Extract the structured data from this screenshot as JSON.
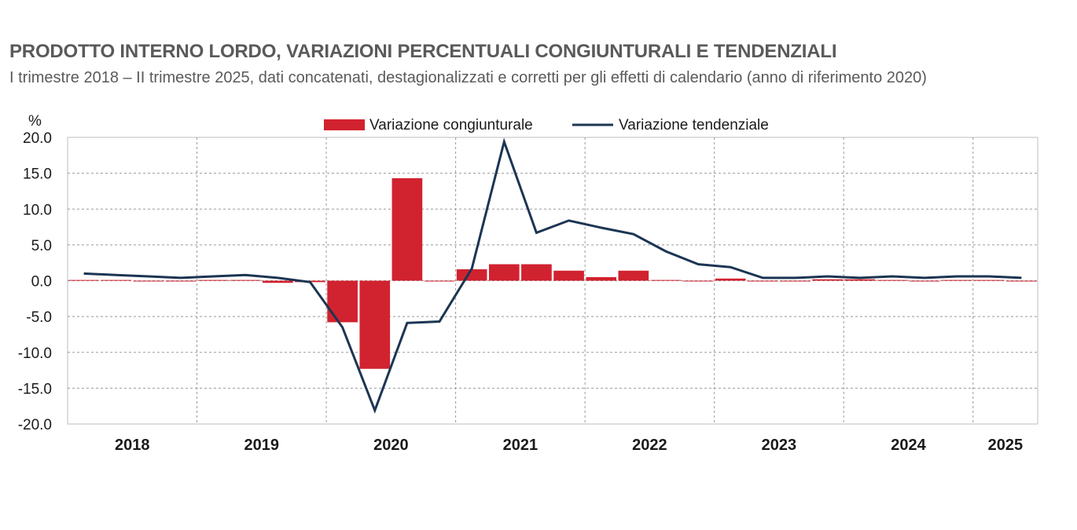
{
  "chart_data": {
    "type": "bar",
    "title": "PRODOTTO INTERNO LORDO, VARIAZIONI PERCENTUALI CONGIUNTURALI E TENDENZIALI",
    "subtitle": "I trimestre 2018 – II trimestre 2025, dati concatenati, destagionalizzati e corretti per gli effetti di calendario (anno di riferimento 2020)",
    "ylabel": "%",
    "ylim": [
      -20,
      20
    ],
    "yticks": [
      "20.0",
      "15.0",
      "10.0",
      "5.0",
      "0.0",
      "-5.0",
      "-10.0",
      "-15.0",
      "-20.0"
    ],
    "ytick_values": [
      20,
      15,
      10,
      5,
      0,
      -5,
      -10,
      -15,
      -20
    ],
    "year_labels": [
      "2018",
      "2019",
      "2020",
      "2021",
      "2022",
      "2023",
      "2024",
      "2025"
    ],
    "grid": true,
    "legend_position": "top",
    "quarters_count": 30,
    "series": [
      {
        "name": "Variazione congiunturale",
        "kind": "bar",
        "color": "#d1222f",
        "values": [
          0.1,
          0.1,
          0.0,
          0.0,
          0.1,
          0.1,
          -0.3,
          -0.2,
          -5.8,
          -12.3,
          14.3,
          0.0,
          1.6,
          2.3,
          2.3,
          1.4,
          0.5,
          1.4,
          0.1,
          -0.1,
          0.3,
          -0.1,
          0.0,
          0.2,
          0.2,
          0.1,
          0.0,
          0.1,
          0.1,
          -0.1
        ]
      },
      {
        "name": "Variazione tendenziale",
        "kind": "line",
        "color": "#1c3553",
        "values": [
          1.0,
          0.8,
          0.6,
          0.4,
          0.6,
          0.8,
          0.4,
          -0.2,
          -6.5,
          -18.1,
          -5.9,
          -5.7,
          1.7,
          19.4,
          6.7,
          8.4,
          7.4,
          6.5,
          4.1,
          2.3,
          1.9,
          0.4,
          0.4,
          0.6,
          0.4,
          0.6,
          0.4,
          0.6,
          0.6,
          0.4
        ]
      }
    ]
  }
}
